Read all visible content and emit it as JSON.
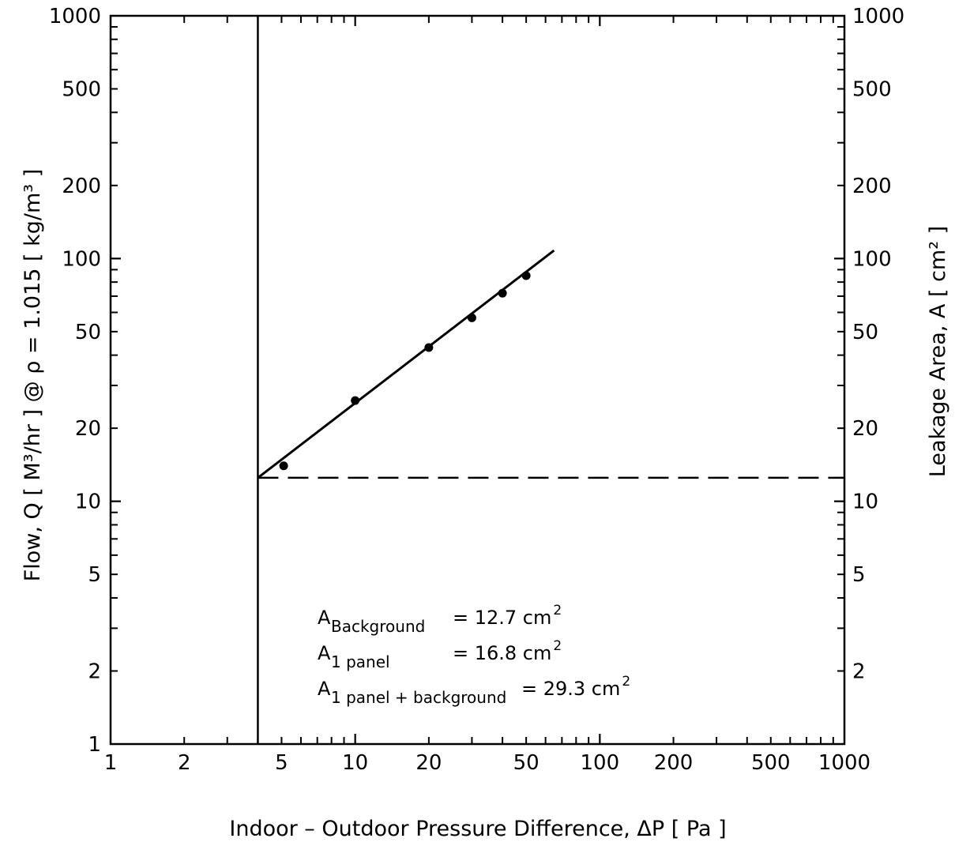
{
  "chart_data": {
    "type": "scatter",
    "x_scale": "log",
    "y_scale": "log",
    "xlim": [
      1,
      1000
    ],
    "ylim": [
      1,
      1000
    ],
    "grid": false,
    "xlabel": "Indoor – Outdoor Pressure Difference, ΔP [ Pa ]",
    "ylabel": "Flow, Q [ M³/hr ] @ ρ = 1.015 [ kg/m³ ]",
    "ylabel_right": "Leakage Area, A [ cm² ]",
    "x_ticks": [
      {
        "value": 1,
        "label": "1"
      },
      {
        "value": 2,
        "label": "2"
      },
      {
        "value": 5,
        "label": "5"
      },
      {
        "value": 10,
        "label": "10"
      },
      {
        "value": 20,
        "label": "20"
      },
      {
        "value": 50,
        "label": "50"
      },
      {
        "value": 100,
        "label": "100"
      },
      {
        "value": 200,
        "label": "200"
      },
      {
        "value": 500,
        "label": "500"
      },
      {
        "value": 1000,
        "label": "1000"
      }
    ],
    "y_ticks": [
      {
        "value": 1,
        "label": "1"
      },
      {
        "value": 2,
        "label": "2"
      },
      {
        "value": 5,
        "label": "5"
      },
      {
        "value": 10,
        "label": "10"
      },
      {
        "value": 20,
        "label": "20"
      },
      {
        "value": 50,
        "label": "50"
      },
      {
        "value": 100,
        "label": "100"
      },
      {
        "value": 200,
        "label": "200"
      },
      {
        "value": 500,
        "label": "500"
      },
      {
        "value": 1000,
        "label": "1000"
      }
    ],
    "y_ticks_right": [
      {
        "value": 2,
        "label": "2"
      },
      {
        "value": 5,
        "label": "5"
      },
      {
        "value": 10,
        "label": "10"
      },
      {
        "value": 20,
        "label": "20"
      },
      {
        "value": 50,
        "label": "50"
      },
      {
        "value": 100,
        "label": "100"
      },
      {
        "value": 200,
        "label": "200"
      },
      {
        "value": 500,
        "label": "500"
      },
      {
        "value": 1000,
        "label": "1000"
      }
    ],
    "points": [
      {
        "x": 5.1,
        "y": 14
      },
      {
        "x": 10,
        "y": 26
      },
      {
        "x": 20,
        "y": 43
      },
      {
        "x": 30,
        "y": 57
      },
      {
        "x": 40,
        "y": 72
      },
      {
        "x": 50,
        "y": 85
      }
    ],
    "fit_line": {
      "x": [
        4,
        65
      ],
      "y": [
        12.5,
        108
      ]
    },
    "reference_vline_x": 4,
    "background_hline": {
      "y": 12.5,
      "x": [
        4,
        1000
      ]
    },
    "annotations": [
      {
        "name": "Background",
        "sym": "A",
        "sub": "Background",
        "eq": "= 12.7 cm",
        "sup": "2"
      },
      {
        "name": "1 panel",
        "sym": "A",
        "sub": "1 panel",
        "eq": "= 16.8 cm",
        "sup": "2"
      },
      {
        "name": "1 panel + background",
        "sym": "A",
        "sub": "1 panel + background",
        "eq": "= 29.3 cm",
        "sup": "2"
      }
    ]
  }
}
